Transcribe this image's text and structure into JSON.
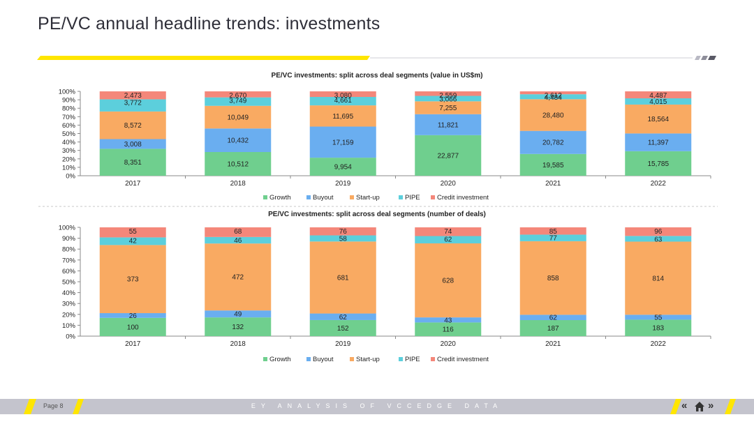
{
  "page": {
    "title": "PE/VC annual headline trends: investments",
    "page_label": "Page 8",
    "footer_text": "EY ANALYSIS OF VCCEDGE DATA"
  },
  "colors": {
    "Growth": "#6fcf8e",
    "Buyout": "#6aaef0",
    "Start-up": "#f9aa62",
    "PIPE": "#5ccfdc",
    "Credit investment": "#f4877a",
    "accent": "#ffe600"
  },
  "icons": [
    "double-chevron-left-icon",
    "home-icon",
    "double-chevron-right-icon"
  ],
  "chart_data": [
    {
      "type": "bar",
      "stacked": "percent",
      "title": "PE/VC investments: split across deal segments (value in US$m)",
      "categories": [
        "2017",
        "2018",
        "2019",
        "2020",
        "2021",
        "2022"
      ],
      "y_ticks": [
        "0%",
        "10%",
        "20%",
        "30%",
        "40%",
        "50%",
        "60%",
        "70%",
        "80%",
        "90%",
        "100%"
      ],
      "ylim": [
        0,
        100
      ],
      "legend_position": "bottom",
      "series": [
        {
          "name": "Growth",
          "values": [
            8351,
            10512,
            9954,
            22877,
            19585,
            15785
          ]
        },
        {
          "name": "Buyout",
          "values": [
            3008,
            10432,
            17159,
            11821,
            20782,
            11397
          ]
        },
        {
          "name": "Start-up",
          "values": [
            8572,
            10049,
            11695,
            7255,
            28480,
            18564
          ]
        },
        {
          "name": "PIPE",
          "values": [
            3772,
            3749,
            4661,
            3066,
            4484,
            4015
          ]
        },
        {
          "name": "Credit investment",
          "values": [
            2473,
            2670,
            3080,
            2559,
            2612,
            4487
          ]
        }
      ],
      "labels": [
        [
          "8,351",
          "10,512",
          "9,954",
          "22,877",
          "19,585",
          "15,785"
        ],
        [
          "3,008",
          "10,432",
          "17,159",
          "11,821",
          "20,782",
          "11,397"
        ],
        [
          "8,572",
          "10,049",
          "11,695",
          "7,255",
          "28,480",
          "18,564"
        ],
        [
          "3,772",
          "3,749",
          "4,661",
          "3,066",
          "4,484",
          "4,015"
        ],
        [
          "2,473",
          "2,670",
          "3,080",
          "2,559",
          "2,612",
          "4,487"
        ]
      ]
    },
    {
      "type": "bar",
      "stacked": "percent",
      "title": "PE/VC investments: split across deal segments (number of deals)",
      "categories": [
        "2017",
        "2018",
        "2019",
        "2020",
        "2021",
        "2022"
      ],
      "y_ticks": [
        "0%",
        "10%",
        "20%",
        "30%",
        "40%",
        "50%",
        "60%",
        "70%",
        "80%",
        "90%",
        "100%"
      ],
      "ylim": [
        0,
        100
      ],
      "legend_position": "bottom",
      "series": [
        {
          "name": "Growth",
          "values": [
            100,
            132,
            152,
            116,
            187,
            183
          ]
        },
        {
          "name": "Buyout",
          "values": [
            26,
            49,
            62,
            43,
            62,
            55
          ]
        },
        {
          "name": "Start-up",
          "values": [
            373,
            472,
            681,
            628,
            858,
            814
          ]
        },
        {
          "name": "PIPE",
          "values": [
            42,
            46,
            58,
            62,
            77,
            63
          ]
        },
        {
          "name": "Credit investment",
          "values": [
            55,
            68,
            76,
            74,
            85,
            96
          ]
        }
      ],
      "labels": [
        [
          "100",
          "132",
          "152",
          "116",
          "187",
          "183"
        ],
        [
          "26",
          "49",
          "62",
          "43",
          "62",
          "55"
        ],
        [
          "373",
          "472",
          "681",
          "628",
          "858",
          "814"
        ],
        [
          "42",
          "46",
          "58",
          "62",
          "77",
          "63"
        ],
        [
          "55",
          "68",
          "76",
          "74",
          "85",
          "96"
        ]
      ]
    }
  ]
}
